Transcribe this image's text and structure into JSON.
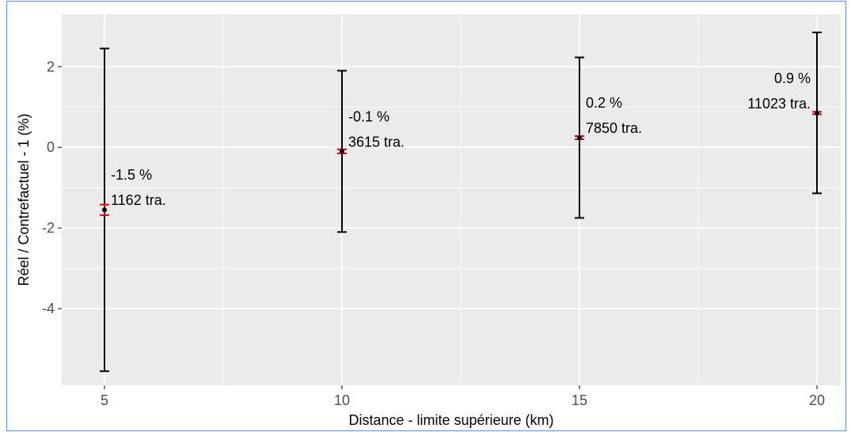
{
  "chart_data": {
    "type": "scatter",
    "xlabel": "Distance - limite supérieure (km)",
    "ylabel": "Réel / Contrefactuel - 1 (%)",
    "xlim": [
      4.1,
      20.5
    ],
    "ylim": [
      -5.9,
      3.3
    ],
    "x_ticks": [
      5,
      10,
      15,
      20
    ],
    "x_tick_labels": [
      "5",
      "10",
      "15",
      "20"
    ],
    "y_ticks": [
      -4,
      -2,
      0,
      2
    ],
    "y_tick_labels": [
      "-4",
      "-2",
      "0",
      "2"
    ],
    "grid": true,
    "panel_background": "#ebebeb",
    "points": [
      {
        "x": 5,
        "y": -1.55,
        "ci_low": -5.55,
        "ci_high": 2.45,
        "se_low": -1.68,
        "se_high": -1.42,
        "label_pct": "-1.5 %",
        "label_n": "1162 tra.",
        "label_side": "right"
      },
      {
        "x": 10,
        "y": -0.1,
        "ci_low": -2.1,
        "ci_high": 1.9,
        "se_low": -0.15,
        "se_high": -0.05,
        "label_pct": "-0.1 %",
        "label_n": "3615 tra.",
        "label_side": "right"
      },
      {
        "x": 15,
        "y": 0.24,
        "ci_low": -1.75,
        "ci_high": 2.23,
        "se_low": 0.2,
        "se_high": 0.28,
        "label_pct": "0.2 %",
        "label_n": "7850 tra.",
        "label_side": "right"
      },
      {
        "x": 20,
        "y": 0.85,
        "ci_low": -1.14,
        "ci_high": 2.85,
        "se_low": 0.82,
        "se_high": 0.88,
        "label_pct": "0.9 %",
        "label_n": "11023 tra.",
        "label_side": "left"
      }
    ],
    "colors": {
      "ci": "#000000",
      "se": "#e00000",
      "point": "#000000",
      "grid": "#ffffff"
    }
  }
}
